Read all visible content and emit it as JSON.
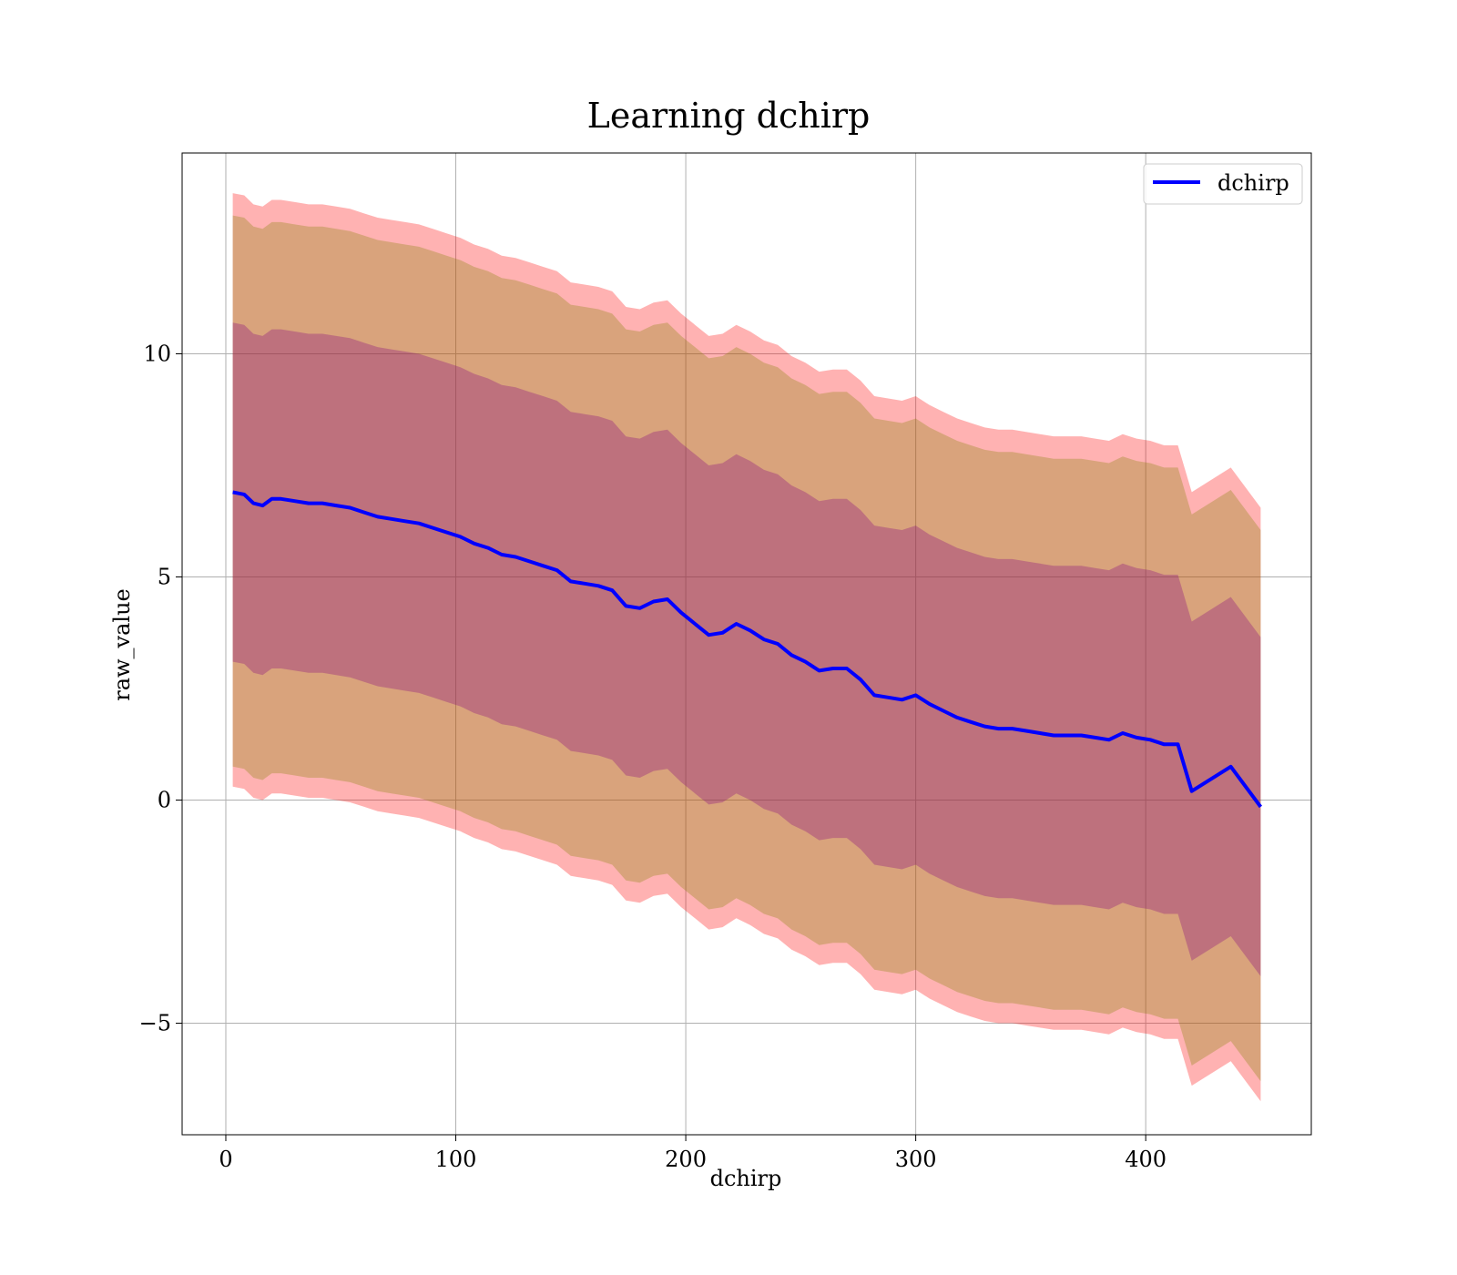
{
  "chart_data": {
    "type": "line",
    "title": "Learning dchirp",
    "xlabel": "dchirp",
    "ylabel": "raw_value",
    "xlim": [
      -19,
      472
    ],
    "ylim": [
      -7.5,
      14.5
    ],
    "xticks": [
      0,
      100,
      200,
      300,
      400
    ],
    "yticks": [
      -5,
      0,
      5,
      10
    ],
    "xtick_labels": [
      "0",
      "100",
      "200",
      "300",
      "400"
    ],
    "ytick_labels": [
      "−5",
      "0",
      "5",
      "10"
    ],
    "grid": true,
    "legend_position": "top-right",
    "series": [
      {
        "name": "dchirp",
        "color": "#0000ff",
        "x": [
          3,
          8,
          12,
          16,
          20,
          24,
          30,
          36,
          42,
          48,
          54,
          60,
          66,
          72,
          78,
          84,
          90,
          96,
          102,
          108,
          114,
          120,
          126,
          132,
          138,
          144,
          150,
          156,
          162,
          168,
          174,
          180,
          186,
          192,
          198,
          204,
          210,
          216,
          222,
          228,
          234,
          240,
          246,
          252,
          258,
          264,
          270,
          276,
          282,
          288,
          294,
          300,
          306,
          312,
          318,
          324,
          330,
          336,
          342,
          348,
          354,
          360,
          366,
          372,
          378,
          384,
          390,
          396,
          402,
          408,
          414,
          420,
          437,
          450
        ],
        "y": [
          6.9,
          6.85,
          6.65,
          6.6,
          6.75,
          6.75,
          6.7,
          6.65,
          6.65,
          6.6,
          6.55,
          6.45,
          6.35,
          6.3,
          6.25,
          6.2,
          6.1,
          6.0,
          5.9,
          5.75,
          5.65,
          5.5,
          5.45,
          5.35,
          5.25,
          5.15,
          4.9,
          4.85,
          4.8,
          4.7,
          4.35,
          4.3,
          4.45,
          4.5,
          4.2,
          3.95,
          3.7,
          3.75,
          3.95,
          3.8,
          3.6,
          3.5,
          3.25,
          3.1,
          2.9,
          2.95,
          2.95,
          2.7,
          2.35,
          2.3,
          2.25,
          2.35,
          2.15,
          2.0,
          1.85,
          1.75,
          1.65,
          1.6,
          1.6,
          1.55,
          1.5,
          1.45,
          1.45,
          1.45,
          1.4,
          1.35,
          1.5,
          1.4,
          1.35,
          1.25,
          1.25,
          0.2,
          0.75,
          -0.15
        ]
      }
    ],
    "bands": [
      {
        "label": "outer",
        "color": "#ff0000",
        "opacity": 0.3,
        "lower_offset": -6.6,
        "upper_offset": 6.7
      },
      {
        "label": "middle",
        "color": "#808000",
        "opacity": 0.3,
        "lower_offset": -6.15,
        "upper_offset": 6.2
      },
      {
        "label": "inner",
        "color": "#800080",
        "opacity": 0.3,
        "lower_offset": -3.8,
        "upper_offset": 3.8
      }
    ]
  }
}
